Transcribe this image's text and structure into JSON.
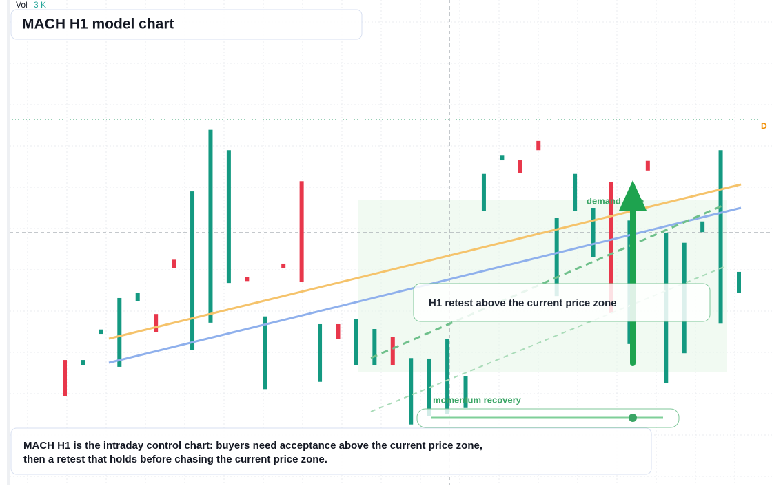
{
  "chart_data": {
    "type": "candlestick",
    "title": "MACH H1 model chart",
    "volume_label": "Vol",
    "volume_value": "3 K",
    "right_badge": "D",
    "annotations": {
      "callout": "H1 retest above the current price zone",
      "zone": "demand zone",
      "momentum": "momentum recovery"
    },
    "description": [
      "MACH H1 is the intraday control chart: buyers need acceptance above the current price zone,",
      "then a retest that holds before chasing the current price zone."
    ],
    "up_color": "#149981",
    "down_color": "#e8374b",
    "ylim": [
      0,
      100
    ],
    "categories": [
      null,
      null,
      null,
      null,
      null,
      null,
      null,
      null,
      null,
      null,
      null,
      null,
      null,
      null,
      null,
      null,
      null,
      null,
      null,
      null,
      null,
      null,
      null,
      null,
      null,
      null,
      null,
      null,
      null,
      null,
      null,
      null,
      null,
      null,
      null,
      null,
      null,
      null
    ],
    "series": [
      {
        "name": "open",
        "values": [
          25.7,
          24.7,
          31.1,
          24.3,
          37.8,
          35.2,
          46.4,
          27.7,
          33.4,
          41.6,
          42.8,
          19.7,
          45.6,
          62.6,
          21.2,
          33.1,
          24.7,
          24.7,
          30.4,
          12.4,
          14.2,
          14.5,
          15.8,
          56.4,
          66.9,
          66.9,
          70.9,
          38.9,
          56.4,
          46.9,
          62.5,
          29.0,
          66.8,
          20.9,
          27.1,
          52.1,
          33.2,
          39.5
        ]
      },
      {
        "name": "close",
        "values": [
          18.3,
          25.7,
          32.0,
          38.5,
          39.5,
          31.4,
          44.7,
          60.5,
          73.2,
          69.0,
          42.0,
          34.7,
          44.6,
          41.8,
          33.1,
          30.0,
          34.1,
          32.1,
          24.7,
          26.1,
          26.0,
          30.0,
          22.3,
          64.1,
          68.0,
          64.3,
          69.0,
          55.1,
          64.1,
          57.1,
          35.4,
          54.5,
          64.8,
          52.0,
          49.9,
          54.3,
          69.0,
          43.9
        ]
      }
    ]
  }
}
